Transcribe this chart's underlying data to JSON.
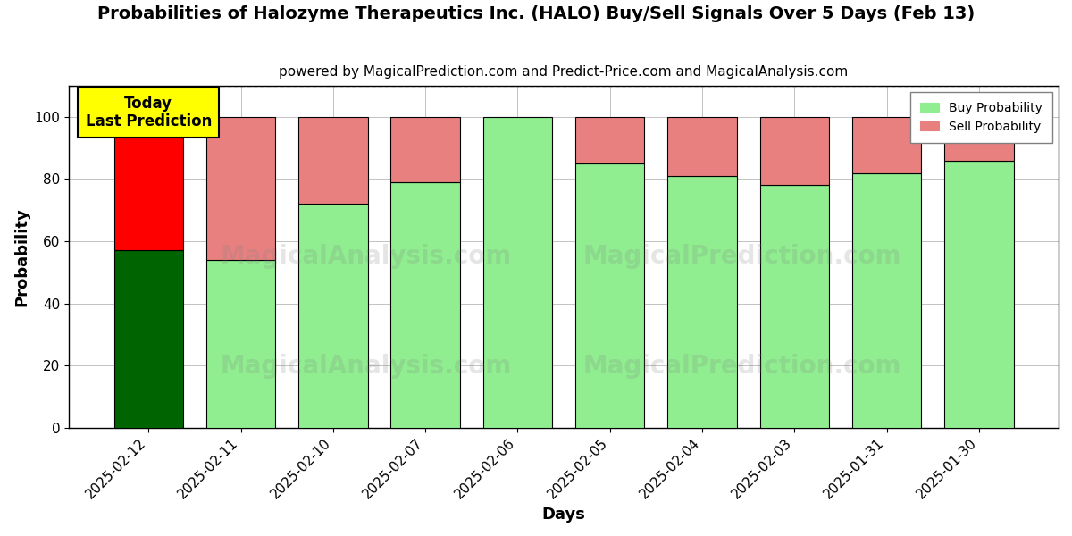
{
  "title": "Probabilities of Halozyme Therapeutics Inc. (HALO) Buy/Sell Signals Over 5 Days (Feb 13)",
  "subtitle": "powered by MagicalPrediction.com and Predict-Price.com and MagicalAnalysis.com",
  "xlabel": "Days",
  "ylabel": "Probability",
  "categories": [
    "2025-02-12",
    "2025-02-11",
    "2025-02-10",
    "2025-02-07",
    "2025-02-06",
    "2025-02-05",
    "2025-02-04",
    "2025-02-03",
    "2025-01-31",
    "2025-01-30"
  ],
  "buy_values": [
    57,
    54,
    72,
    79,
    100,
    85,
    81,
    78,
    82,
    86
  ],
  "sell_values": [
    43,
    46,
    28,
    21,
    0,
    15,
    19,
    22,
    18,
    14
  ],
  "buy_colors_today": "#006400",
  "sell_color_today": "#FF0000",
  "buy_color_rest": "#90EE90",
  "sell_color_rest": "#E88080",
  "ylim": [
    0,
    110
  ],
  "dashed_line_y": 110,
  "today_label": "Today\nLast Prediction",
  "today_label_bg": "#FFFF00",
  "legend_buy_color": "#90EE90",
  "legend_sell_color": "#E88080",
  "background_color": "#FFFFFF",
  "grid_color": "#AAAAAA",
  "title_fontsize": 14,
  "subtitle_fontsize": 11,
  "axis_label_fontsize": 13,
  "tick_fontsize": 11,
  "bar_width": 0.75
}
